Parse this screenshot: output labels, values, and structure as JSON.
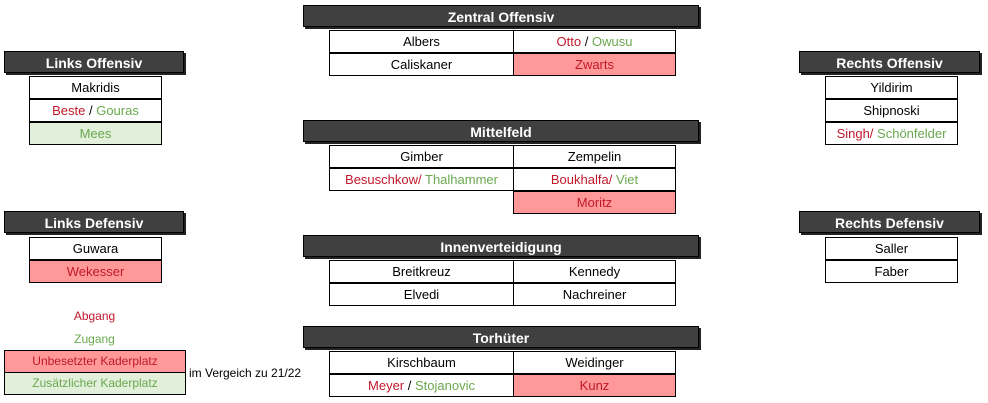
{
  "colors": {
    "abgang": "#c0182b",
    "zugang": "#6aa84f",
    "normal": "#000000",
    "unbesetzt_fill": "#ff9999",
    "zusaetzlich_fill": "#e2efda",
    "header_fill": "#404040"
  },
  "groups": [
    {
      "id": "zentral-offensiv",
      "title": "Zentral Offensiv",
      "cols": 2,
      "rows": [
        [
          {
            "parts": [
              {
                "t": "Albers",
                "c": "normal"
              }
            ]
          },
          {
            "parts": [
              {
                "t": "Otto",
                "c": "abgang"
              },
              {
                "t": " / ",
                "c": "normal"
              },
              {
                "t": "Owusu",
                "c": "zugang"
              }
            ]
          }
        ],
        [
          {
            "parts": [
              {
                "t": "Caliskaner",
                "c": "normal"
              }
            ]
          },
          {
            "parts": [
              {
                "t": "Zwarts",
                "c": "abgang"
              }
            ],
            "fill": "free"
          }
        ]
      ]
    },
    {
      "id": "links-offensiv",
      "title": "Links Offensiv",
      "cols": 1,
      "rows": [
        [
          {
            "parts": [
              {
                "t": "Makridis",
                "c": "normal"
              }
            ]
          }
        ],
        [
          {
            "parts": [
              {
                "t": "Beste",
                "c": "abgang"
              },
              {
                "t": " / ",
                "c": "normal"
              },
              {
                "t": "Gouras",
                "c": "zugang"
              }
            ]
          }
        ],
        [
          {
            "parts": [
              {
                "t": "Mees",
                "c": "zugang"
              }
            ],
            "fill": "extra"
          }
        ]
      ]
    },
    {
      "id": "rechts-offensiv",
      "title": "Rechts Offensiv",
      "cols": 1,
      "rows": [
        [
          {
            "parts": [
              {
                "t": "Yildirim",
                "c": "normal"
              }
            ]
          }
        ],
        [
          {
            "parts": [
              {
                "t": "Shipnoski",
                "c": "normal"
              }
            ]
          }
        ],
        [
          {
            "parts": [
              {
                "t": "Singh/",
                "c": "abgang"
              },
              {
                "t": " Schönfelder",
                "c": "zugang"
              }
            ]
          }
        ]
      ]
    },
    {
      "id": "mittelfeld",
      "title": "Mittelfeld",
      "cols": 2,
      "rows": [
        [
          {
            "parts": [
              {
                "t": "Gimber",
                "c": "normal"
              }
            ]
          },
          {
            "parts": [
              {
                "t": "Zempelin",
                "c": "normal"
              }
            ]
          }
        ],
        [
          {
            "parts": [
              {
                "t": "Besuschkow/",
                "c": "abgang"
              },
              {
                "t": " Thalhammer",
                "c": "zugang"
              }
            ]
          },
          {
            "parts": [
              {
                "t": "Boukhalfa/",
                "c": "abgang"
              },
              {
                "t": " Viet",
                "c": "zugang"
              }
            ]
          }
        ],
        [
          null,
          {
            "parts": [
              {
                "t": "Moritz",
                "c": "abgang"
              }
            ],
            "fill": "free"
          }
        ]
      ]
    },
    {
      "id": "links-defensiv",
      "title": "Links Defensiv",
      "cols": 1,
      "rows": [
        [
          {
            "parts": [
              {
                "t": "Guwara",
                "c": "normal"
              }
            ]
          }
        ],
        [
          {
            "parts": [
              {
                "t": "Wekesser",
                "c": "abgang"
              }
            ],
            "fill": "free"
          }
        ]
      ]
    },
    {
      "id": "rechts-defensiv",
      "title": "Rechts Defensiv",
      "cols": 1,
      "rows": [
        [
          {
            "parts": [
              {
                "t": "Saller",
                "c": "normal"
              }
            ]
          }
        ],
        [
          {
            "parts": [
              {
                "t": "Faber",
                "c": "normal"
              }
            ]
          }
        ]
      ]
    },
    {
      "id": "innenverteidigung",
      "title": "Innenverteidigung",
      "cols": 2,
      "rows": [
        [
          {
            "parts": [
              {
                "t": "Breitkreuz",
                "c": "normal"
              }
            ]
          },
          {
            "parts": [
              {
                "t": "Kennedy",
                "c": "normal"
              }
            ]
          }
        ],
        [
          {
            "parts": [
              {
                "t": "Elvedi",
                "c": "normal"
              }
            ]
          },
          {
            "parts": [
              {
                "t": "Nachreiner",
                "c": "normal"
              }
            ]
          }
        ]
      ]
    },
    {
      "id": "torhueter",
      "title": "Torhüter",
      "cols": 2,
      "rows": [
        [
          {
            "parts": [
              {
                "t": "Kirschbaum",
                "c": "normal"
              }
            ]
          },
          {
            "parts": [
              {
                "t": "Weidinger",
                "c": "normal"
              }
            ]
          }
        ],
        [
          {
            "parts": [
              {
                "t": "Meyer",
                "c": "abgang"
              },
              {
                "t": " / ",
                "c": "normal"
              },
              {
                "t": "Stojanovic",
                "c": "zugang"
              }
            ]
          },
          {
            "parts": [
              {
                "t": "Kunz",
                "c": "abgang"
              }
            ],
            "fill": "free"
          }
        ]
      ]
    }
  ],
  "legend": {
    "abgang": "Abgang",
    "zugang": "Zugang",
    "unbesetzt": "Unbesetzter Kaderplatz",
    "zusaetzlich": "Zusätzlicher Kaderplatz",
    "note": "im Vergeich zu 21/22"
  }
}
